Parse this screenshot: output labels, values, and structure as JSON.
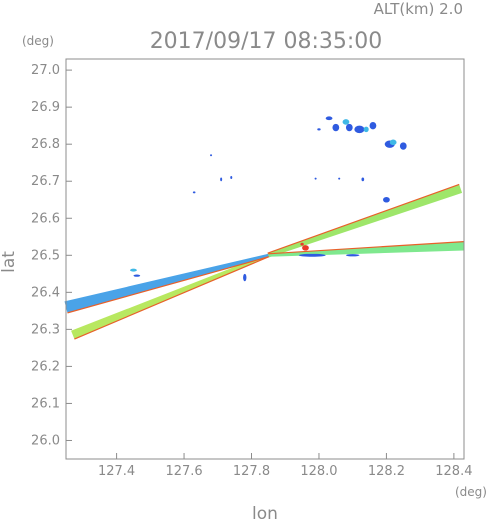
{
  "chart_data": {
    "type": "scatter",
    "title": "2017/09/17 08:35:00",
    "subtitle": "ALT(km) 2.0",
    "xlabel": "lon",
    "ylabel": "lat",
    "x_unit": "(deg)",
    "y_unit": "(deg)",
    "xlim": [
      127.25,
      128.43
    ],
    "ylim": [
      25.95,
      27.03
    ],
    "xticks": [
      "127.4",
      "127.6",
      "127.8",
      "128.0",
      "128.2",
      "128.4"
    ],
    "yticks": [
      "26.0",
      "26.1",
      "26.2",
      "26.3",
      "26.4",
      "26.5",
      "26.6",
      "26.7",
      "26.8",
      "26.9",
      "27.0"
    ],
    "grid": false,
    "series": [
      {
        "kind": "beam",
        "color": "#9ee66a",
        "edge_color": "#e8602a",
        "values": [
          [
            127.85,
            26.5
          ],
          [
            128.42,
            26.68
          ]
        ],
        "width": [
          0.006,
          0.012
        ]
      },
      {
        "kind": "beam",
        "color": "#7fe88e",
        "edge_color": "#e8602a",
        "values": [
          [
            127.85,
            26.5
          ],
          [
            128.43,
            26.525
          ]
        ],
        "width": [
          0.004,
          0.012
        ]
      },
      {
        "kind": "beam",
        "color": "#b8e860",
        "edge_color": "#e8602a",
        "values": [
          [
            127.85,
            26.5
          ],
          [
            127.27,
            26.285
          ]
        ],
        "width": [
          0.004,
          0.012
        ]
      },
      {
        "kind": "beam",
        "color": "#4aa3e8",
        "edge_color": "#e8602a",
        "values": [
          [
            127.85,
            26.5
          ],
          [
            127.25,
            26.36
          ]
        ],
        "width": [
          0.004,
          0.016
        ]
      },
      {
        "kind": "echo",
        "color": "#2f5be0",
        "values": [
          [
            128.12,
            26.84,
            0.03,
            0.02
          ],
          [
            128.16,
            26.85,
            0.02,
            0.02
          ],
          [
            128.21,
            26.8,
            0.03,
            0.02
          ],
          [
            128.25,
            26.795,
            0.02,
            0.02
          ],
          [
            128.05,
            26.845,
            0.02,
            0.02
          ],
          [
            128.09,
            26.845,
            0.02,
            0.02
          ],
          [
            128.03,
            26.87,
            0.02,
            0.01
          ],
          [
            128.0,
            26.84,
            0.01,
            0.006
          ],
          [
            128.2,
            26.65,
            0.02,
            0.015
          ],
          [
            127.98,
            26.5,
            0.08,
            0.008
          ],
          [
            127.78,
            26.44,
            0.01,
            0.02
          ],
          [
            127.46,
            26.445,
            0.02,
            0.006
          ],
          [
            127.71,
            26.705,
            0.006,
            0.01
          ],
          [
            127.74,
            26.71,
            0.006,
            0.008
          ],
          [
            127.68,
            26.77,
            0.004,
            0.004
          ],
          [
            127.63,
            26.67,
            0.008,
            0.005
          ],
          [
            128.13,
            26.705,
            0.008,
            0.01
          ],
          [
            128.06,
            26.707,
            0.006,
            0.004
          ],
          [
            127.99,
            26.707,
            0.004,
            0.003
          ],
          [
            128.1,
            26.5,
            0.04,
            0.006
          ]
        ]
      },
      {
        "kind": "echo",
        "color": "#3fb8e6",
        "values": [
          [
            128.14,
            26.84,
            0.015,
            0.015
          ],
          [
            128.08,
            26.86,
            0.02,
            0.015
          ],
          [
            128.22,
            26.805,
            0.02,
            0.015
          ],
          [
            127.45,
            26.46,
            0.02,
            0.008
          ]
        ]
      },
      {
        "kind": "echo",
        "color": "#e83a2a",
        "values": [
          [
            127.96,
            26.52,
            0.02,
            0.015
          ],
          [
            127.95,
            26.53,
            0.01,
            0.008
          ]
        ]
      }
    ]
  }
}
